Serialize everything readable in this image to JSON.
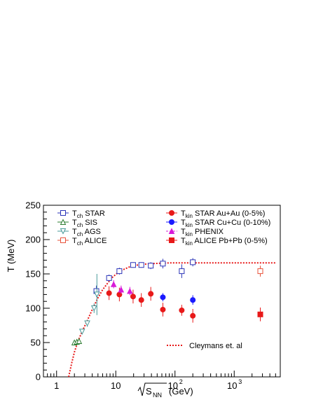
{
  "chart_data": {
    "type": "scatter",
    "title": "",
    "xlabel_prefix": "",
    "xlabel_root": "S",
    "xlabel_sub": "NN",
    "xlabel_unit": "(GeV)",
    "ylabel": "T (MeV)",
    "x_scale": "log",
    "xlim": [
      0.6,
      6000
    ],
    "ylim": [
      0,
      250
    ],
    "x_ticks": [
      {
        "value": 1,
        "label": "1"
      },
      {
        "value": 10,
        "label": "10"
      },
      {
        "value": 100,
        "label": "10",
        "sup": "2"
      },
      {
        "value": 1000,
        "label": "10",
        "sup": "3"
      }
    ],
    "y_ticks": [
      0,
      50,
      100,
      150,
      200,
      250
    ],
    "grid": false,
    "legend": [
      {
        "series": 0,
        "base": "T",
        "sub": "ch",
        "text": " STAR"
      },
      {
        "series": 1,
        "base": "T",
        "sub": "ch",
        "text": " SIS"
      },
      {
        "series": 2,
        "base": "T",
        "sub": "ch",
        "text": " AGS"
      },
      {
        "series": 3,
        "base": "T",
        "sub": "ch",
        "text": " ALICE"
      },
      {
        "series": 4,
        "base": "T",
        "sub": "kin",
        "text": " STAR Au+Au (0-5%)"
      },
      {
        "series": 5,
        "base": "T",
        "sub": "kin",
        "text": " STAR Cu+Cu (0-10%)"
      },
      {
        "series": 6,
        "base": "T",
        "sub": "kin",
        "text": " PHENIX"
      },
      {
        "series": 7,
        "base": "T",
        "sub": "kin",
        "text": " ALICE Pb+Pb (0-5%)"
      }
    ],
    "curve_label": "Cleymans et. al",
    "series": [
      {
        "color": "#2b35b8",
        "marker": "square-open",
        "points": [
          [
            4.7,
            125,
            8
          ],
          [
            7.7,
            144,
            5
          ],
          [
            11.5,
            154,
            5
          ],
          [
            19.6,
            163,
            4
          ],
          [
            27,
            163,
            4
          ],
          [
            39,
            162,
            5
          ],
          [
            62.4,
            165,
            7
          ],
          [
            130,
            154,
            10
          ],
          [
            200,
            167,
            6
          ]
        ]
      },
      {
        "color": "#2e7d32",
        "marker": "triangle-open",
        "points": [
          [
            2.0,
            50,
            2
          ],
          [
            2.2,
            51,
            2
          ],
          [
            2.4,
            52,
            2
          ]
        ]
      },
      {
        "color": "#4a9a9a",
        "marker": "triangle-down-open",
        "points": [
          [
            2.7,
            66,
            4
          ],
          [
            3.3,
            78,
            5
          ],
          [
            4.3,
            100,
            7
          ],
          [
            4.8,
            120,
            30
          ]
        ]
      },
      {
        "color": "#e8523a",
        "marker": "square-open",
        "points": [
          [
            2760,
            154,
            8
          ]
        ]
      },
      {
        "color": "#e81919",
        "marker": "circle",
        "points": [
          [
            7.7,
            122,
            10
          ],
          [
            11.5,
            120,
            10
          ],
          [
            19.6,
            117,
            10
          ],
          [
            27,
            112,
            10
          ],
          [
            39,
            121,
            10
          ],
          [
            62.4,
            98,
            10
          ],
          [
            130,
            97,
            8
          ],
          [
            200,
            89,
            10
          ]
        ]
      },
      {
        "color": "#1a1aff",
        "marker": "circle",
        "points": [
          [
            62.4,
            116,
            6
          ],
          [
            200,
            112,
            7
          ]
        ]
      },
      {
        "color": "#d81bd8",
        "marker": "triangle",
        "points": [
          [
            9.2,
            135,
            6
          ],
          [
            12.3,
            127,
            6
          ],
          [
            17.3,
            125,
            6
          ]
        ]
      },
      {
        "color": "#e81919",
        "marker": "square",
        "points": [
          [
            2760,
            91,
            10
          ]
        ]
      }
    ],
    "curve": {
      "color": "#e81919",
      "style": "dashed",
      "points": [
        [
          1.6,
          0
        ],
        [
          1.8,
          20
        ],
        [
          2.0,
          36
        ],
        [
          2.3,
          52
        ],
        [
          2.7,
          66
        ],
        [
          3.3,
          82
        ],
        [
          4.0,
          98
        ],
        [
          5.0,
          115
        ],
        [
          6.0,
          127
        ],
        [
          7.5,
          138
        ],
        [
          9.0,
          146
        ],
        [
          11,
          152
        ],
        [
          14,
          157
        ],
        [
          18,
          161
        ],
        [
          25,
          163.5
        ],
        [
          40,
          165
        ],
        [
          80,
          166
        ],
        [
          200,
          166
        ],
        [
          1000,
          166
        ],
        [
          5000,
          166
        ]
      ]
    }
  }
}
